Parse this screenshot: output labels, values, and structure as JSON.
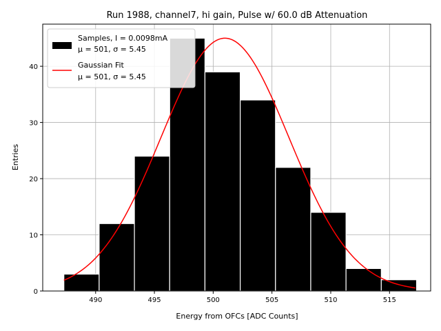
{
  "chart_data": {
    "type": "bar",
    "title": "Run 1988, channel7, hi gain, Pulse w/ 60.0 dB Attenuation",
    "xlabel": "Energy from OFCs [ADC Counts]",
    "ylabel": "Entries",
    "xlim": [
      485.5,
      518.5
    ],
    "ylim": [
      0,
      47.5
    ],
    "xticks": [
      490,
      495,
      500,
      505,
      510,
      515
    ],
    "yticks": [
      0,
      10,
      20,
      30,
      40
    ],
    "grid": true,
    "bin_edges": [
      487.3,
      490.3,
      493.3,
      496.3,
      499.3,
      502.3,
      505.3,
      508.3,
      511.3,
      514.3,
      517.3
    ],
    "counts": [
      3,
      12,
      24,
      45,
      39,
      34,
      22,
      14,
      4,
      2
    ],
    "bar_color": "#000000",
    "fit": {
      "name": "Gaussian Fit",
      "mu": 501,
      "sigma": 5.45,
      "amplitude": 45,
      "x_range": [
        487.3,
        517.2
      ],
      "color": "#ff0000"
    },
    "legend": {
      "position": "top-left",
      "entries": [
        {
          "line1": "Samples, I = 0.0098mA",
          "line2": "μ = 501, σ = 5.45",
          "kind": "patch",
          "color": "#000000"
        },
        {
          "line1": "Gaussian Fit",
          "line2": "μ = 501, σ = 5.45",
          "kind": "line",
          "color": "#ff0000"
        }
      ]
    }
  }
}
